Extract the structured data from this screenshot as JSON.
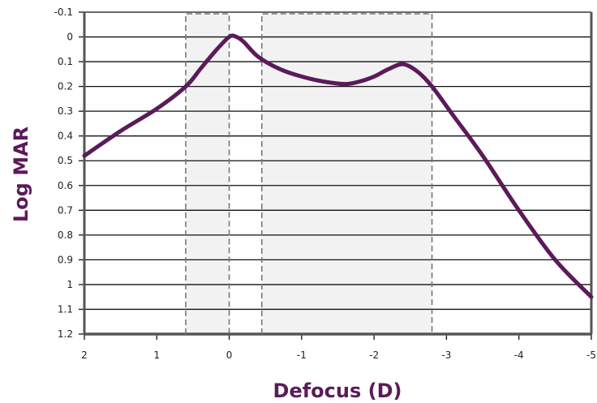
{
  "chart_data": {
    "type": "line",
    "xlabel": "Defocus (D)",
    "ylabel": "Log MAR",
    "xlim": [
      2,
      -5
    ],
    "ylim": [
      -0.1,
      1.2
    ],
    "y_inverted": true,
    "x_ticks": [
      2,
      1,
      0,
      -1,
      -2,
      -3,
      -4,
      -5
    ],
    "x_tick_labels": [
      "2",
      "1",
      "0",
      "-1",
      "-2",
      "-3",
      "-4",
      "-5"
    ],
    "y_ticks": [
      -0.1,
      0,
      0.1,
      0.2,
      0.3,
      0.4,
      0.5,
      0.6,
      0.7,
      0.8,
      0.9,
      1,
      1.1,
      1.2
    ],
    "y_tick_labels": [
      "-0.1",
      "0",
      "0.1",
      "0.2",
      "0.3",
      "0.4",
      "0.5",
      "0.6",
      "0.7",
      "0.8",
      "0.9",
      "1",
      "1.1",
      "1.2"
    ],
    "grid": "horizontal",
    "shaded_regions": [
      {
        "x_from": 0.6,
        "x_to": 0.0
      },
      {
        "x_from": -0.45,
        "x_to": -2.8
      }
    ],
    "series": [
      {
        "x": [
          2,
          1.5,
          1,
          0.6,
          0.4,
          0.2,
          0.0,
          -0.1,
          -0.2,
          -0.4,
          -0.7,
          -1,
          -1.3,
          -1.6,
          -1.8,
          -2.0,
          -2.2,
          -2.4,
          -2.6,
          -2.8,
          -3.1,
          -3.5,
          -4.0,
          -4.5,
          -5.0
        ],
        "y": [
          0.48,
          0.38,
          0.29,
          0.2,
          0.13,
          0.06,
          0.0,
          0.0,
          0.02,
          0.08,
          0.13,
          0.16,
          0.18,
          0.19,
          0.18,
          0.16,
          0.13,
          0.11,
          0.14,
          0.2,
          0.32,
          0.48,
          0.7,
          0.9,
          1.05
        ]
      }
    ],
    "colors": {
      "line": "#5b1a5a",
      "axis_title": "#5b1a5a",
      "shade": "#f2f2f2",
      "dash": "#777777",
      "grid": "#111111",
      "frame": "#555555"
    }
  }
}
